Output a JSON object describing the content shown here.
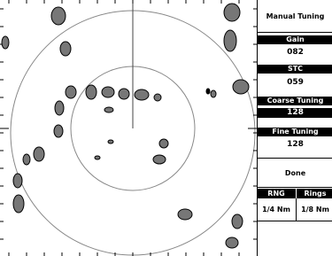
{
  "panel": {
    "title": "Manual Tuning",
    "controls": [
      {
        "label": "Gain",
        "value": "082"
      },
      {
        "label": "STC",
        "value": "059"
      },
      {
        "label": "Coarse Tuning",
        "value": "128"
      },
      {
        "label": "Fine Tuning",
        "value": "128"
      }
    ],
    "done": "Done",
    "status": {
      "headers": [
        "RNG",
        "Rings"
      ],
      "values": [
        "1/4 Nm",
        "1/8 Nm"
      ]
    }
  }
}
